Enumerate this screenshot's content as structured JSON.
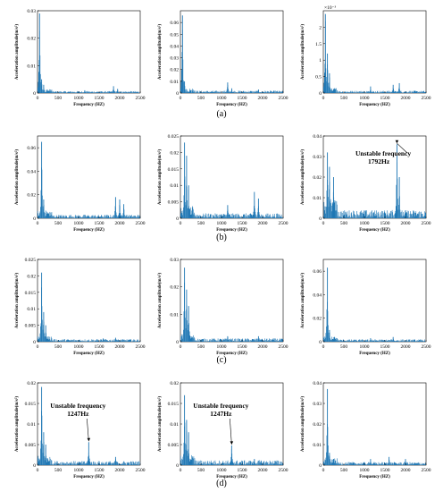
{
  "rows": [
    {
      "label": "(a)",
      "charts": [
        {
          "type": "bar",
          "xlabel": "Frequency (HZ)",
          "ylabel": "Acceleration amplitude(m/s²)",
          "xlim": [
            0,
            2500
          ],
          "xticks": [
            "0",
            "500",
            "1000",
            "1500",
            "2000",
            "2500"
          ],
          "ylim": [
            0,
            0.03
          ],
          "yticks": [
            "0",
            "0.01",
            "0.02",
            "0.03"
          ],
          "peaks": [
            {
              "x": 50,
              "y": 0.029
            },
            {
              "x": 100,
              "y": 0.005
            },
            {
              "x": 150,
              "y": 0.003
            },
            {
              "x": 1150,
              "y": 0.001
            },
            {
              "x": 1850,
              "y": 0.0025
            },
            {
              "x": 1950,
              "y": 0.0015
            }
          ],
          "noise": 0.0007
        },
        {
          "type": "bar",
          "xlabel": "Frequency (HZ)",
          "ylabel": "Acceleration amplitude(m/s²)",
          "xlim": [
            0,
            2500
          ],
          "xticks": [
            "0",
            "500",
            "1000",
            "1500",
            "2000",
            "2500"
          ],
          "ylim": [
            0,
            0.07
          ],
          "yticks": [
            "0",
            "0.01",
            "0.02",
            "0.03",
            "0.04",
            "0.05",
            "0.06"
          ],
          "peaks": [
            {
              "x": 50,
              "y": 0.066
            },
            {
              "x": 100,
              "y": 0.01
            },
            {
              "x": 1150,
              "y": 0.009
            },
            {
              "x": 1250,
              "y": 0.004
            },
            {
              "x": 1900,
              "y": 0.003
            }
          ],
          "noise": 0.002
        },
        {
          "type": "bar",
          "xlabel": "Frequency (HZ)",
          "ylabel": "Acceleration amplitude(m/s²)",
          "xlim": [
            0,
            2500
          ],
          "xticks": [
            "0",
            "500",
            "1000",
            "1500",
            "2000",
            "2500"
          ],
          "ylim": [
            0,
            0.0025
          ],
          "yticks": [
            "0",
            "0.5",
            "1",
            "1.5",
            "2"
          ],
          "yexp": "×10⁻³",
          "peaks": [
            {
              "x": 50,
              "y": 0.0024
            },
            {
              "x": 100,
              "y": 0.0012
            },
            {
              "x": 150,
              "y": 0.0006
            },
            {
              "x": 1150,
              "y": 0.0002
            },
            {
              "x": 1700,
              "y": 0.00025
            },
            {
              "x": 1850,
              "y": 0.0003
            }
          ],
          "noise": 7e-05
        }
      ]
    },
    {
      "label": "(b)",
      "charts": [
        {
          "type": "bar",
          "xlabel": "Frequency (HZ)",
          "ylabel": "Acceleration amplitude(m/s²)",
          "xlim": [
            0,
            2500
          ],
          "xticks": [
            "0",
            "500",
            "1000",
            "1500",
            "2000",
            "2500"
          ],
          "ylim": [
            0,
            0.07
          ],
          "yticks": [
            "0",
            "0.02",
            "0.04",
            "0.06"
          ],
          "peaks": [
            {
              "x": 100,
              "y": 0.065
            },
            {
              "x": 150,
              "y": 0.016
            },
            {
              "x": 1900,
              "y": 0.018
            },
            {
              "x": 2000,
              "y": 0.016
            },
            {
              "x": 2100,
              "y": 0.012
            }
          ],
          "noise": 0.003
        },
        {
          "type": "bar",
          "xlabel": "Frequency (HZ)",
          "ylabel": "Acceleration amplitude(m/s²)",
          "xlim": [
            0,
            2500
          ],
          "xticks": [
            "0",
            "500",
            "1000",
            "1500",
            "2000",
            "2500"
          ],
          "ylim": [
            0,
            0.025
          ],
          "yticks": [
            "0",
            "0.005",
            "0.01",
            "0.015",
            "0.02",
            "0.025"
          ],
          "peaks": [
            {
              "x": 100,
              "y": 0.023
            },
            {
              "x": 150,
              "y": 0.019
            },
            {
              "x": 200,
              "y": 0.01
            },
            {
              "x": 1150,
              "y": 0.004
            },
            {
              "x": 1800,
              "y": 0.008
            },
            {
              "x": 1900,
              "y": 0.006
            }
          ],
          "noise": 0.0015
        },
        {
          "type": "bar",
          "xlabel": "Frequency (HZ)",
          "ylabel": "Acceleration amplitude(m/s²)",
          "xlim": [
            0,
            2500
          ],
          "xticks": [
            "0",
            "500",
            "1000",
            "1500",
            "2000",
            "2500"
          ],
          "ylim": [
            0,
            0.04
          ],
          "yticks": [
            "0",
            "0.01",
            "0.02",
            "0.03",
            "0.04"
          ],
          "peaks": [
            {
              "x": 100,
              "y": 0.032
            },
            {
              "x": 150,
              "y": 0.025
            },
            {
              "x": 250,
              "y": 0.02
            },
            {
              "x": 1792,
              "y": 0.036
            },
            {
              "x": 1850,
              "y": 0.02
            }
          ],
          "noise": 0.004,
          "annotation": {
            "text1": "Unstable frequency",
            "text2": "1792Hz",
            "x": 1792,
            "y": 0.036
          }
        }
      ]
    },
    {
      "label": "(c)",
      "charts": [
        {
          "type": "bar",
          "xlabel": "Frequency (HZ)",
          "ylabel": "Acceleration amplitude(m/s²)",
          "xlim": [
            0,
            2500
          ],
          "xticks": [
            "0",
            "500",
            "1000",
            "1500",
            "2000",
            "2500"
          ],
          "ylim": [
            0,
            0.025
          ],
          "yticks": [
            "0",
            "0.005",
            "0.01",
            "0.015",
            "0.02",
            "0.025"
          ],
          "peaks": [
            {
              "x": 100,
              "y": 0.021
            },
            {
              "x": 150,
              "y": 0.009
            },
            {
              "x": 200,
              "y": 0.005
            },
            {
              "x": 1600,
              "y": 0.001
            },
            {
              "x": 1900,
              "y": 0.0012
            }
          ],
          "noise": 0.0008
        },
        {
          "type": "bar",
          "xlabel": "Frequency (HZ)",
          "ylabel": "Acceleration amplitude(m/s²)",
          "xlim": [
            0,
            2500
          ],
          "xticks": [
            "0",
            "500",
            "1000",
            "1500",
            "2000",
            "2500"
          ],
          "ylim": [
            0,
            0.03
          ],
          "yticks": [
            "0",
            "0.01",
            "0.02",
            "0.03"
          ],
          "peaks": [
            {
              "x": 100,
              "y": 0.027
            },
            {
              "x": 150,
              "y": 0.019
            },
            {
              "x": 200,
              "y": 0.013
            },
            {
              "x": 1150,
              "y": 0.002
            },
            {
              "x": 1900,
              "y": 0.002
            }
          ],
          "noise": 0.0012
        },
        {
          "type": "bar",
          "xlabel": "Frequency (HZ)",
          "ylabel": "Acceleration amplitude(m/s²)",
          "xlim": [
            0,
            2500
          ],
          "xticks": [
            "0",
            "500",
            "1000",
            "1500",
            "2000",
            "2500"
          ],
          "ylim": [
            0,
            0.07
          ],
          "yticks": [
            "0",
            "0.02",
            "0.04",
            "0.06"
          ],
          "peaks": [
            {
              "x": 100,
              "y": 0.063
            },
            {
              "x": 150,
              "y": 0.01
            },
            {
              "x": 1150,
              "y": 0.003
            },
            {
              "x": 1700,
              "y": 0.004
            }
          ],
          "noise": 0.002
        }
      ]
    },
    {
      "label": "(d)",
      "charts": [
        {
          "type": "bar",
          "xlabel": "Frequency (HZ)",
          "ylabel": "Acceleration amplitude(m/s²)",
          "xlim": [
            0,
            2500
          ],
          "xticks": [
            "0",
            "500",
            "1000",
            "1500",
            "2000",
            "2500"
          ],
          "ylim": [
            0,
            0.02
          ],
          "yticks": [
            "0",
            "0.005",
            "0.01",
            "0.015",
            "0.02"
          ],
          "peaks": [
            {
              "x": 100,
              "y": 0.019
            },
            {
              "x": 150,
              "y": 0.008
            },
            {
              "x": 200,
              "y": 0.005
            },
            {
              "x": 1247,
              "y": 0.0056
            },
            {
              "x": 1900,
              "y": 0.002
            }
          ],
          "noise": 0.001,
          "annotation": {
            "text1": "Unstable frequency",
            "text2": "1247Hz",
            "x": 1247,
            "y": 0.0056
          }
        },
        {
          "type": "bar",
          "xlabel": "Frequency (HZ)",
          "ylabel": "Acceleration amplitude(m/s²)",
          "xlim": [
            0,
            2500
          ],
          "xticks": [
            "0",
            "500",
            "1000",
            "1500",
            "2000",
            "2500"
          ],
          "ylim": [
            0,
            0.02
          ],
          "yticks": [
            "0",
            "0.005",
            "0.01",
            "0.015",
            "0.02"
          ],
          "peaks": [
            {
              "x": 100,
              "y": 0.017
            },
            {
              "x": 150,
              "y": 0.011
            },
            {
              "x": 200,
              "y": 0.008
            },
            {
              "x": 1247,
              "y": 0.0048
            },
            {
              "x": 1800,
              "y": 0.0015
            }
          ],
          "noise": 0.0012,
          "annotation": {
            "text1": "Unstable frequency",
            "text2": "1247Hz",
            "x": 1247,
            "y": 0.0048
          }
        },
        {
          "type": "bar",
          "xlabel": "Frequency (HZ)",
          "ylabel": "Acceleration amplitude(m/s²)",
          "xlim": [
            0,
            2500
          ],
          "xticks": [
            "0",
            "500",
            "1000",
            "1500",
            "2000",
            "2500"
          ],
          "ylim": [
            0,
            0.04
          ],
          "yticks": [
            "0",
            "0.01",
            "0.02",
            "0.03",
            "0.04"
          ],
          "peaks": [
            {
              "x": 100,
              "y": 0.037
            },
            {
              "x": 150,
              "y": 0.006
            },
            {
              "x": 1150,
              "y": 0.003
            },
            {
              "x": 1600,
              "y": 0.004
            },
            {
              "x": 2000,
              "y": 0.003
            }
          ],
          "noise": 0.0015
        }
      ]
    }
  ]
}
